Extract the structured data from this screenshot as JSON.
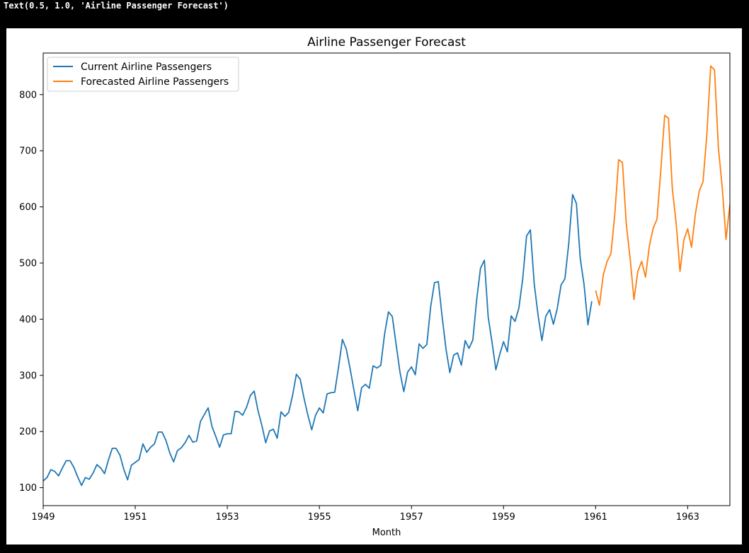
{
  "output_text": "Text(0.5, 1.0, 'Airline Passenger Forecast')",
  "chart_data": {
    "type": "line",
    "title": "Airline Passenger Forecast",
    "xlabel": "Month",
    "ylabel": "",
    "xlim": [
      1949.0,
      1963.9167
    ],
    "ylim": [
      68,
      874
    ],
    "x_ticks": [
      1949,
      1951,
      1953,
      1955,
      1957,
      1959,
      1961,
      1963
    ],
    "x_tick_labels": [
      "1949",
      "1951",
      "1953",
      "1955",
      "1957",
      "1959",
      "1961",
      "1963"
    ],
    "y_ticks": [
      100,
      200,
      300,
      400,
      500,
      600,
      700,
      800
    ],
    "y_tick_labels": [
      "100",
      "200",
      "300",
      "400",
      "500",
      "600",
      "700",
      "800"
    ],
    "legend_position": "top-left",
    "series": [
      {
        "name": "Current Airline Passengers",
        "color": "#1f77b4",
        "x_start": 1949.0,
        "x_step": 0.083333,
        "values": [
          112,
          118,
          132,
          129,
          121,
          135,
          148,
          148,
          136,
          119,
          104,
          118,
          115,
          126,
          141,
          135,
          125,
          149,
          170,
          170,
          158,
          133,
          114,
          140,
          145,
          150,
          178,
          163,
          172,
          178,
          199,
          199,
          184,
          162,
          146,
          166,
          171,
          180,
          193,
          181,
          183,
          218,
          230,
          242,
          209,
          191,
          172,
          194,
          196,
          196,
          236,
          235,
          229,
          243,
          264,
          272,
          237,
          211,
          180,
          201,
          204,
          188,
          235,
          227,
          234,
          264,
          302,
          293,
          259,
          229,
          203,
          229,
          242,
          233,
          267,
          269,
          270,
          315,
          364,
          347,
          312,
          274,
          237,
          278,
          284,
          277,
          317,
          313,
          318,
          374,
          413,
          405,
          355,
          306,
          271,
          306,
          315,
          301,
          356,
          348,
          355,
          422,
          465,
          467,
          404,
          347,
          305,
          336,
          340,
          318,
          362,
          348,
          363,
          435,
          491,
          505,
          404,
          359,
          310,
          337,
          360,
          342,
          406,
          396,
          420,
          472,
          548,
          559,
          463,
          407,
          362,
          405,
          417,
          391,
          419,
          461,
          472,
          535,
          622,
          606,
          508,
          461,
          390,
          432
        ]
      },
      {
        "name": "Forecasted Airline Passengers",
        "color": "#ff7f0e",
        "x_start": 1961.0,
        "x_step": 0.083333,
        "values": [
          451,
          425,
          479,
          503,
          517,
          587,
          684,
          679,
          569,
          508,
          435,
          485,
          503,
          475,
          530,
          562,
          578,
          666,
          763,
          758,
          632,
          571,
          485,
          541,
          561,
          528,
          587,
          628,
          645,
          729,
          851,
          844,
          706,
          635,
          542,
          605
        ]
      }
    ]
  }
}
